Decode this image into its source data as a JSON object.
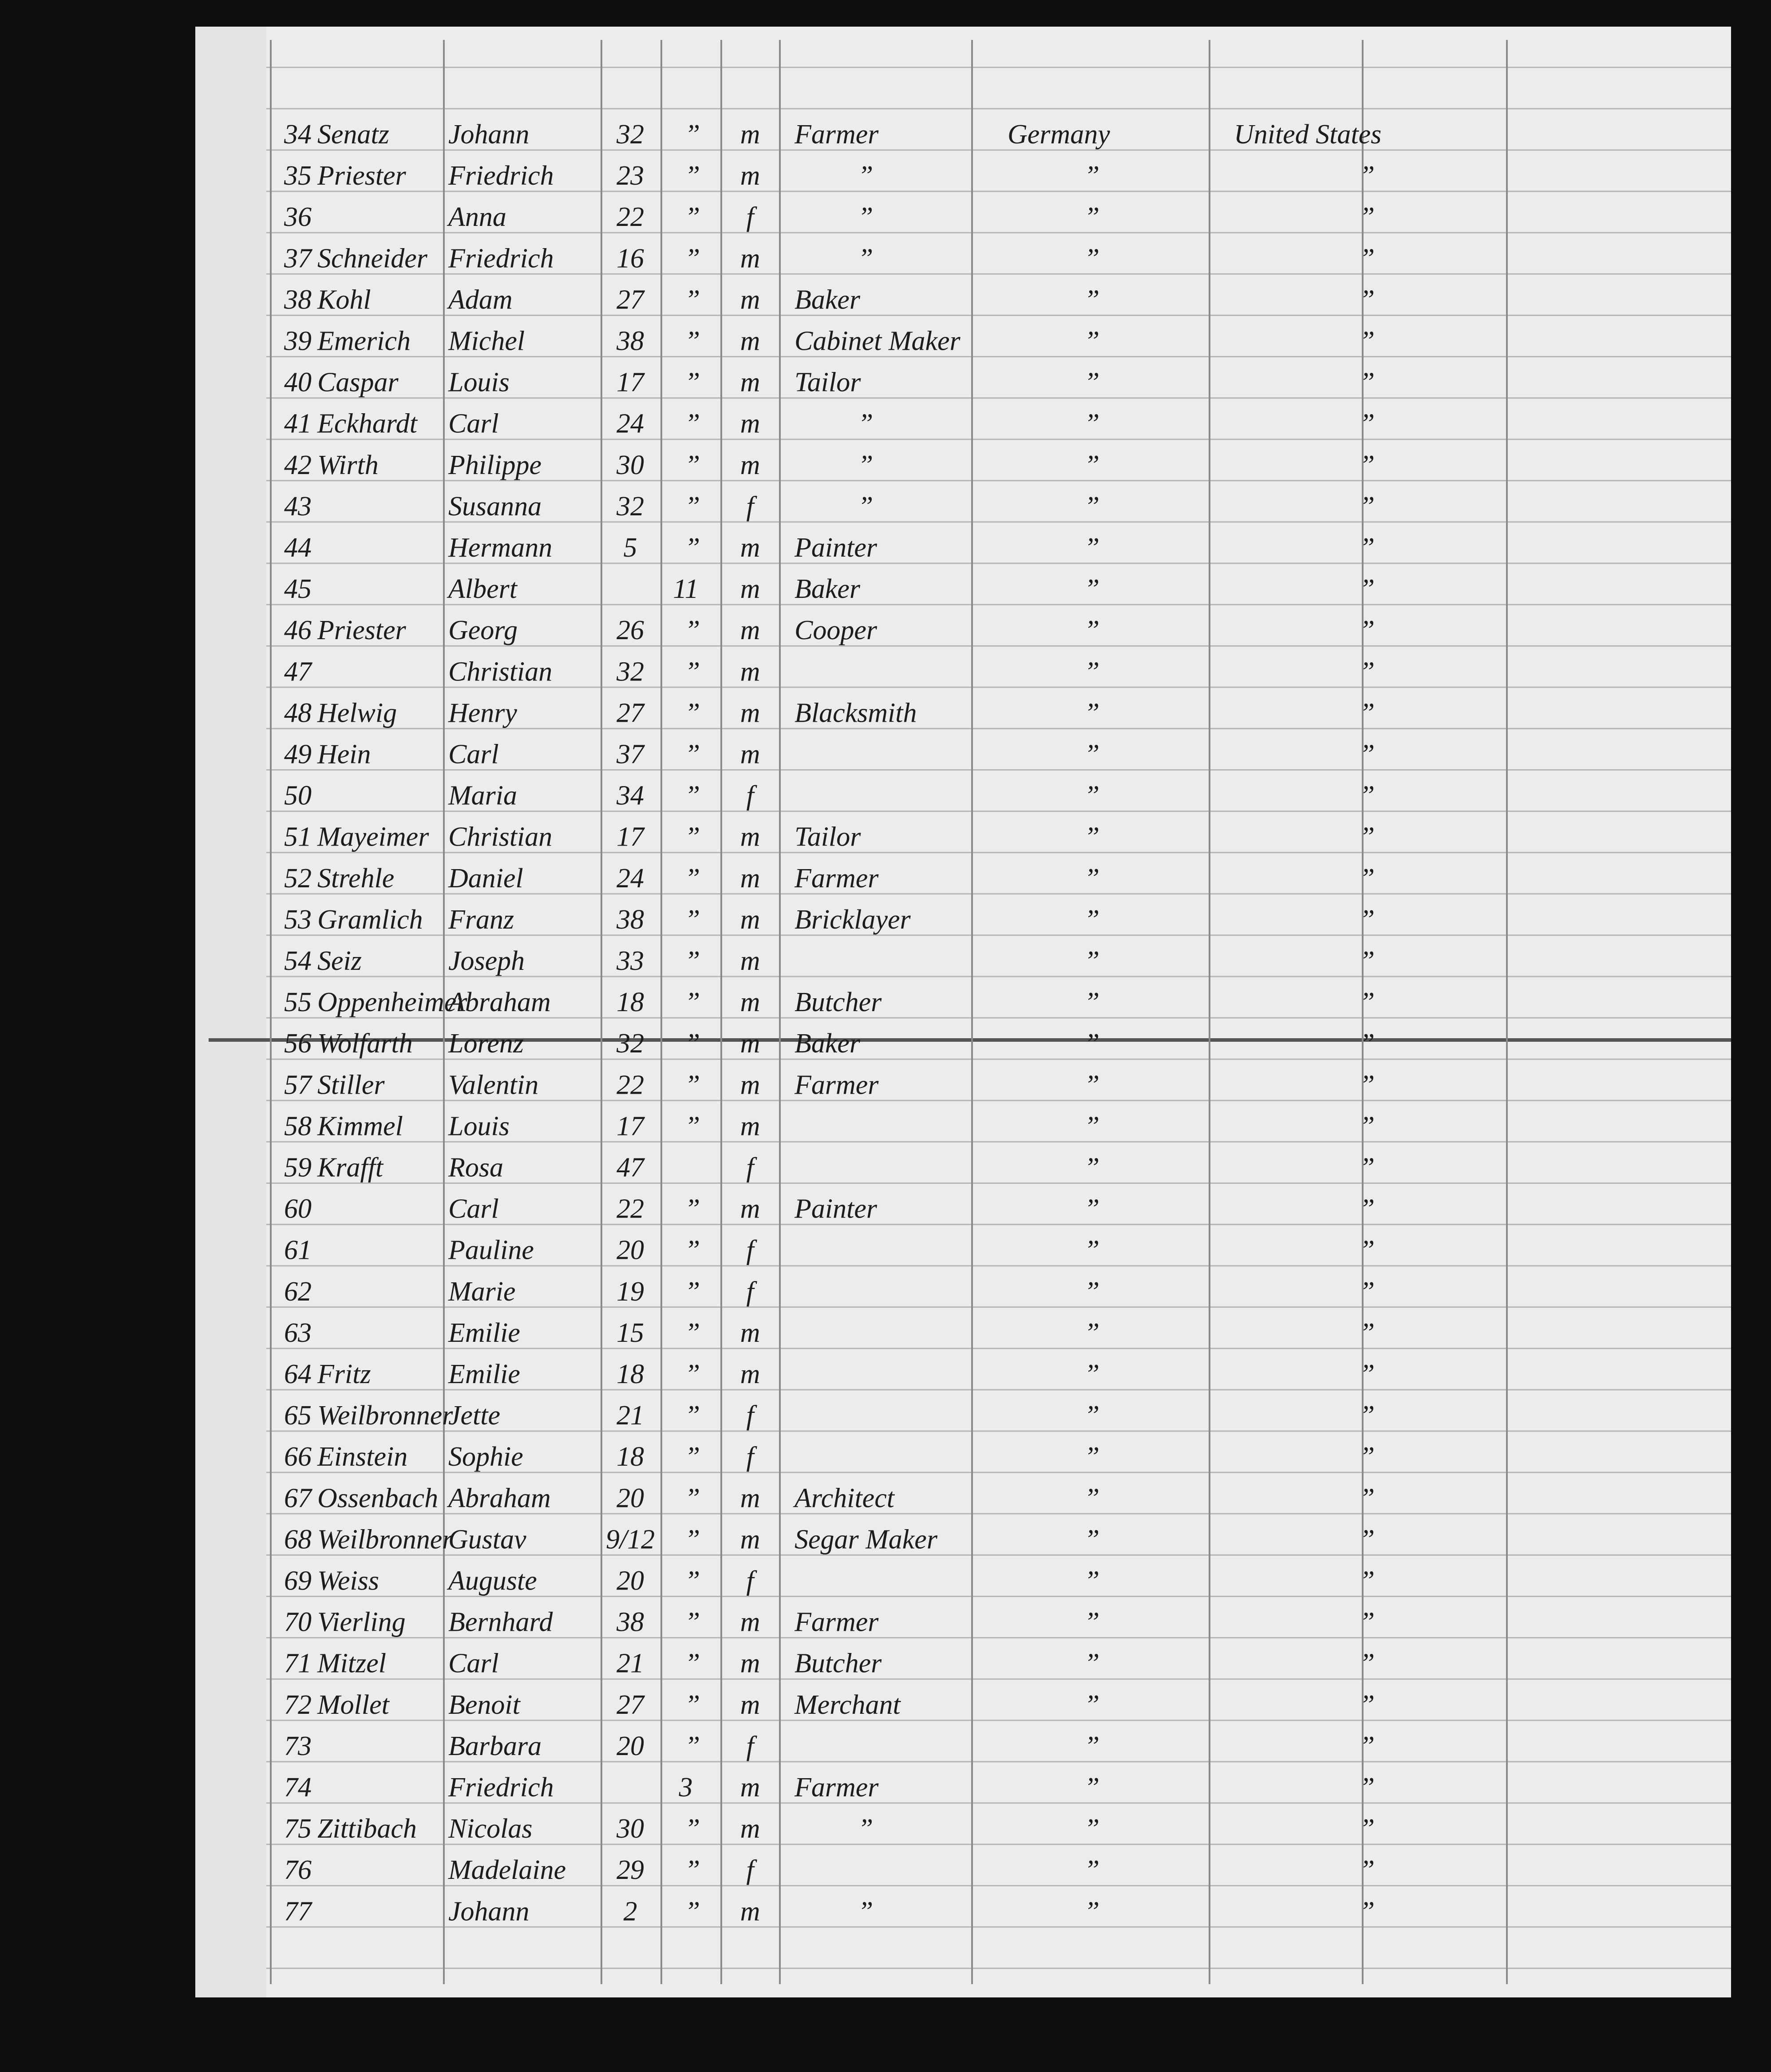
{
  "rows": [
    {
      "n": "34",
      "surname": "Senatz",
      "given": "Johann",
      "age": "32",
      "mark": "”",
      "sex": "m",
      "occupation": "Farmer",
      "country": "Germany",
      "destination": "United States"
    },
    {
      "n": "35",
      "surname": "Priester",
      "given": "Friedrich",
      "age": "23",
      "mark": "”",
      "sex": "m",
      "occupation": "”",
      "country": "”",
      "destination": "”"
    },
    {
      "n": "36",
      "given": "Anna",
      "age": "22",
      "mark": "”",
      "sex": "f",
      "occupation": "”",
      "country": "”",
      "destination": "”"
    },
    {
      "n": "37",
      "surname": "Schneider",
      "given": "Friedrich",
      "age": "16",
      "mark": "”",
      "sex": "m",
      "occupation": "”",
      "country": "”",
      "destination": "”"
    },
    {
      "n": "38",
      "surname": "Kohl",
      "given": "Adam",
      "age": "27",
      "mark": "”",
      "sex": "m",
      "occupation": "Baker",
      "country": "”",
      "destination": "”"
    },
    {
      "n": "39",
      "surname": "Emerich",
      "given": "Michel",
      "age": "38",
      "mark": "”",
      "sex": "m",
      "occupation": "Cabinet Maker",
      "country": "”",
      "destination": "”"
    },
    {
      "n": "40",
      "surname": "Caspar",
      "given": "Louis",
      "age": "17",
      "mark": "”",
      "sex": "m",
      "occupation": "Tailor",
      "country": "”",
      "destination": "”"
    },
    {
      "n": "41",
      "surname": "Eckhardt",
      "given": "Carl",
      "age": "24",
      "mark": "”",
      "sex": "m",
      "occupation": "”",
      "country": "”",
      "destination": "”"
    },
    {
      "n": "42",
      "surname": "Wirth",
      "given": "Philippe",
      "age": "30",
      "mark": "”",
      "sex": "m",
      "occupation": "”",
      "country": "”",
      "destination": "”"
    },
    {
      "n": "43",
      "given": "Susanna",
      "age": "32",
      "mark": "”",
      "sex": "f",
      "occupation": "”",
      "country": "”",
      "destination": "”"
    },
    {
      "n": "44",
      "given": "Hermann",
      "age": "5",
      "mark": "”",
      "sex": "m",
      "occupation": "Painter",
      "country": "”",
      "destination": "”"
    },
    {
      "n": "45",
      "given": "Albert",
      "infant": "11",
      "sex": "m",
      "occupation": "Baker",
      "country": "”",
      "destination": "”"
    },
    {
      "n": "46",
      "surname": "Priester",
      "given": "Georg",
      "age": "26",
      "mark": "”",
      "sex": "m",
      "occupation": "Cooper",
      "country": "”",
      "destination": "”"
    },
    {
      "n": "47",
      "given": "Christian",
      "age": "32",
      "mark": "”",
      "sex": "m",
      "country": "”",
      "destination": "”"
    },
    {
      "n": "48",
      "surname": "Helwig",
      "given": "Henry",
      "age": "27",
      "mark": "”",
      "sex": "m",
      "occupation": "Blacksmith",
      "country": "”",
      "destination": "”"
    },
    {
      "n": "49",
      "surname": "Hein",
      "given": "Carl",
      "age": "37",
      "mark": "”",
      "sex": "m",
      "country": "”",
      "destination": "”"
    },
    {
      "n": "50",
      "given": "Maria",
      "age": "34",
      "mark": "”",
      "sex": "f",
      "country": "”",
      "destination": "”"
    },
    {
      "n": "51",
      "surname": "Mayeimer",
      "given": "Christian",
      "age": "17",
      "mark": "”",
      "sex": "m",
      "occupation": "Tailor",
      "country": "”",
      "destination": "”"
    },
    {
      "n": "52",
      "surname": "Strehle",
      "given": "Daniel",
      "age": "24",
      "mark": "”",
      "sex": "m",
      "occupation": "Farmer",
      "country": "”",
      "destination": "”"
    },
    {
      "n": "53",
      "surname": "Gramlich",
      "given": "Franz",
      "age": "38",
      "mark": "”",
      "sex": "m",
      "occupation": "Bricklayer",
      "country": "”",
      "destination": "”"
    },
    {
      "n": "54",
      "surname": "Seiz",
      "given": "Joseph",
      "age": "33",
      "mark": "”",
      "sex": "m",
      "country": "”",
      "destination": "”"
    },
    {
      "n": "55",
      "surname": "Oppenheimer",
      "given": "Abraham",
      "age": "18",
      "mark": "”",
      "sex": "m",
      "occupation": "Butcher",
      "country": "”",
      "destination": "”"
    },
    {
      "n": "56",
      "surname": "Wolfarth",
      "given": "Lorenz",
      "age": "32",
      "mark": "”",
      "sex": "m",
      "occupation": "Baker",
      "country": "”",
      "destination": "”"
    },
    {
      "n": "57",
      "surname": "Stiller",
      "given": "Valentin",
      "age": "22",
      "mark": "”",
      "sex": "m",
      "occupation": "Farmer",
      "country": "”",
      "destination": "”"
    },
    {
      "n": "58",
      "surname": "Kimmel",
      "given": "Louis",
      "age": "17",
      "mark": "”",
      "sex": "m",
      "country": "”",
      "destination": "”"
    },
    {
      "n": "59",
      "surname": "Krafft",
      "given": "Rosa",
      "age": "47",
      "sex": "f",
      "country": "”",
      "destination": "”"
    },
    {
      "n": "60",
      "given": "Carl",
      "age": "22",
      "mark": "”",
      "sex": "m",
      "occupation": "Painter",
      "country": "”",
      "destination": "”"
    },
    {
      "n": "61",
      "given": "Pauline",
      "age": "20",
      "mark": "”",
      "sex": "f",
      "country": "”",
      "destination": "”"
    },
    {
      "n": "62",
      "given": "Marie",
      "age": "19",
      "mark": "”",
      "sex": "f",
      "country": "”",
      "destination": "”"
    },
    {
      "n": "63",
      "given": "Emilie",
      "age": "15",
      "mark": "”",
      "sex": "m",
      "country": "”",
      "destination": "”"
    },
    {
      "n": "64",
      "surname": "Fritz",
      "given": "Emilie",
      "age": "18",
      "mark": "”",
      "sex": "m",
      "country": "”",
      "destination": "”"
    },
    {
      "n": "65",
      "surname": "Weilbronner",
      "given": "Jette",
      "age": "21",
      "mark": "”",
      "sex": "f",
      "country": "”",
      "destination": "”"
    },
    {
      "n": "66",
      "surname": "Einstein",
      "given": "Sophie",
      "age": "18",
      "mark": "”",
      "sex": "f",
      "country": "”",
      "destination": "”"
    },
    {
      "n": "67",
      "surname": "Ossenbach",
      "given": "Abraham",
      "age": "20",
      "mark": "”",
      "sex": "m",
      "occupation": "Architect",
      "country": "”",
      "destination": "”"
    },
    {
      "n": "68",
      "surname": "Weilbronner",
      "given": "Gustav",
      "age": "9/12",
      "mark": "”",
      "sex": "m",
      "occupation": "Segar Maker",
      "country": "”",
      "destination": "”"
    },
    {
      "n": "69",
      "surname": "Weiss",
      "given": "Auguste",
      "age": "20",
      "mark": "”",
      "sex": "f",
      "country": "”",
      "destination": "”"
    },
    {
      "n": "70",
      "surname": "Vierling",
      "given": "Bernhard",
      "age": "38",
      "mark": "”",
      "sex": "m",
      "occupation": "Farmer",
      "country": "”",
      "destination": "”"
    },
    {
      "n": "71",
      "surname": "Mitzel",
      "given": "Carl",
      "age": "21",
      "mark": "”",
      "sex": "m",
      "occupation": "Butcher",
      "country": "”",
      "destination": "”"
    },
    {
      "n": "72",
      "surname": "Mollet",
      "given": "Benoit",
      "age": "27",
      "mark": "”",
      "sex": "m",
      "occupation": "Merchant",
      "country": "”",
      "destination": "”"
    },
    {
      "n": "73",
      "given": "Barbara",
      "age": "20",
      "mark": "”",
      "sex": "f",
      "country": "”",
      "destination": "”"
    },
    {
      "n": "74",
      "given": "Friedrich",
      "infant": "3",
      "sex": "m",
      "occupation": "Farmer",
      "country": "”",
      "destination": "”"
    },
    {
      "n": "75",
      "surname": "Zittibach",
      "given": "Nicolas",
      "age": "30",
      "mark": "”",
      "sex": "m",
      "occupation": "”",
      "country": "”",
      "destination": "”"
    },
    {
      "n": "76",
      "given": "Madelaine",
      "age": "29",
      "mark": "”",
      "sex": "f",
      "country": "”",
      "destination": "”"
    },
    {
      "n": "77",
      "given": "Johann",
      "age": "2",
      "mark": "”",
      "sex": "m",
      "occupation": "”",
      "country": "”",
      "destination": "”"
    }
  ]
}
